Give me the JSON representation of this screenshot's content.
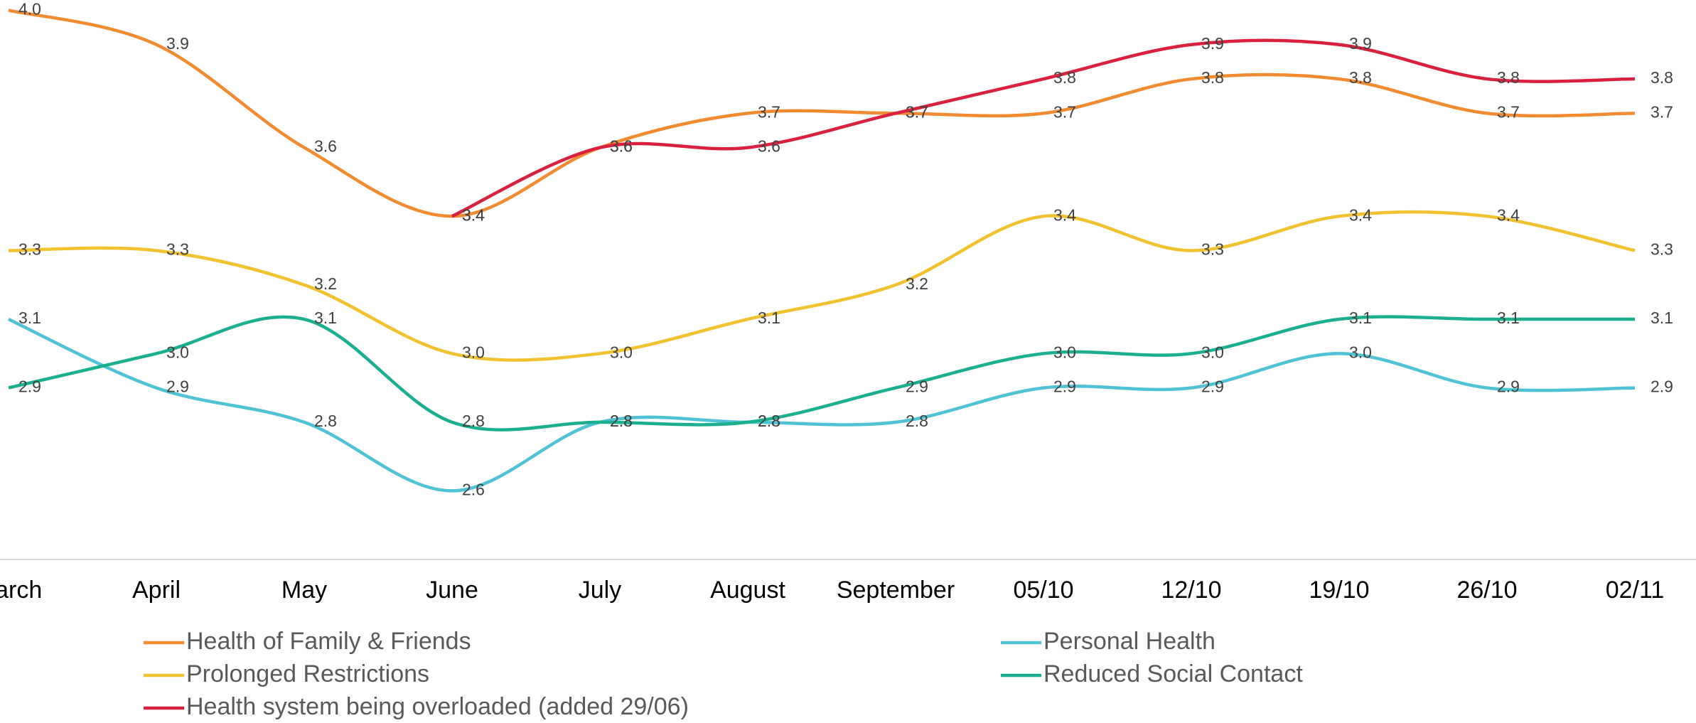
{
  "chart_data": {
    "type": "line",
    "categories": [
      "March",
      "April",
      "May",
      "June",
      "July",
      "August",
      "September",
      "05/10",
      "12/10",
      "19/10",
      "26/10",
      "02/11"
    ],
    "ylim": [
      2.4,
      4.03
    ],
    "series": [
      {
        "name": "Health of Family & Friends",
        "color": "#f28a30",
        "values": [
          4.0,
          3.9,
          3.6,
          3.4,
          3.6,
          3.7,
          3.7,
          3.7,
          3.8,
          3.8,
          3.7,
          3.7
        ],
        "value_labels": [
          "4.0",
          "3.9",
          "3.6",
          "3.4",
          "3.6",
          "3.7",
          "3.7",
          "3.7",
          "3.8",
          "3.8",
          "3.7",
          "3.7"
        ]
      },
      {
        "name": "Personal Health",
        "color": "#4fc3d5",
        "values": [
          3.1,
          2.9,
          2.8,
          2.6,
          2.8,
          2.8,
          2.8,
          2.9,
          2.9,
          3.0,
          2.9,
          2.9
        ],
        "value_labels": [
          "3.1",
          "2.9",
          "2.8",
          "2.6",
          "2.8",
          "2.8",
          "2.8",
          "2.9",
          "2.9",
          "3.0",
          "2.9",
          "2.9"
        ]
      },
      {
        "name": "Prolonged Restrictions",
        "color": "#f2c12e",
        "values": [
          3.3,
          3.3,
          3.2,
          3.0,
          3.0,
          3.1,
          3.2,
          3.4,
          3.3,
          3.4,
          3.4,
          3.3
        ],
        "value_labels": [
          "3.3",
          "3.3",
          "3.2",
          "3.0",
          "3.0",
          "3.1",
          "3.2",
          "3.4",
          "3.3",
          "3.4",
          "3.4",
          "3.3"
        ]
      },
      {
        "name": "Reduced Social Contact",
        "color": "#1aaf8e",
        "values": [
          2.9,
          3.0,
          3.1,
          2.8,
          2.8,
          2.8,
          2.9,
          3.0,
          3.0,
          3.1,
          3.1,
          3.1
        ],
        "value_labels": [
          "2.9",
          "3.0",
          "3.1",
          "2.8",
          "2.8",
          "2.8",
          "2.9",
          "3.0",
          "3.0",
          "3.1",
          "3.1",
          "3.1"
        ]
      },
      {
        "name": "Health system being overloaded (added 29/06)",
        "color": "#d9213f",
        "values": [
          null,
          null,
          null,
          3.4,
          3.6,
          3.6,
          3.7,
          3.8,
          3.9,
          3.9,
          3.8,
          3.8
        ],
        "value_labels": [
          null,
          null,
          null,
          "3.4",
          "3.6",
          "3.6",
          "3.7",
          "3.8",
          "3.9",
          "3.9",
          "3.8",
          "3.8"
        ]
      }
    ]
  }
}
